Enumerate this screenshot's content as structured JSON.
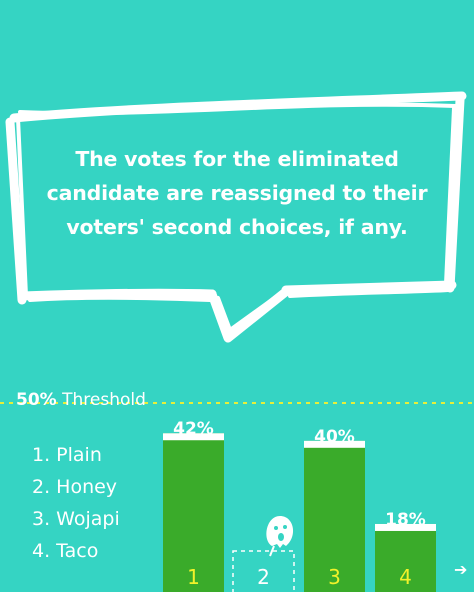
{
  "caption": {
    "line1": "The votes for the eliminated",
    "line2": "candidate are reassigned to their",
    "line3": "voters' second choices, if any."
  },
  "threshold": {
    "value": "50%",
    "label": "Threshold"
  },
  "legend": {
    "items": [
      "1. Plain",
      "2. Honey",
      "3. Wojapi",
      "4. Taco"
    ]
  },
  "chart_data": {
    "type": "bar",
    "categories": [
      "1",
      "2",
      "3",
      "4"
    ],
    "values": [
      42,
      0,
      40,
      18
    ],
    "labels": [
      "42%",
      "",
      "40%",
      "18%"
    ],
    "eliminated": "2",
    "threshold": 50,
    "ylim": [
      0,
      50
    ]
  },
  "colors": {
    "background": "#35d4c3",
    "bar": "#3aab2a",
    "bar_number": "#f2f22a",
    "threshold_line": "#e6ef3a",
    "white": "#ffffff"
  },
  "icons": {
    "eliminated": "ghost-icon",
    "next": "arrow-right-icon"
  }
}
